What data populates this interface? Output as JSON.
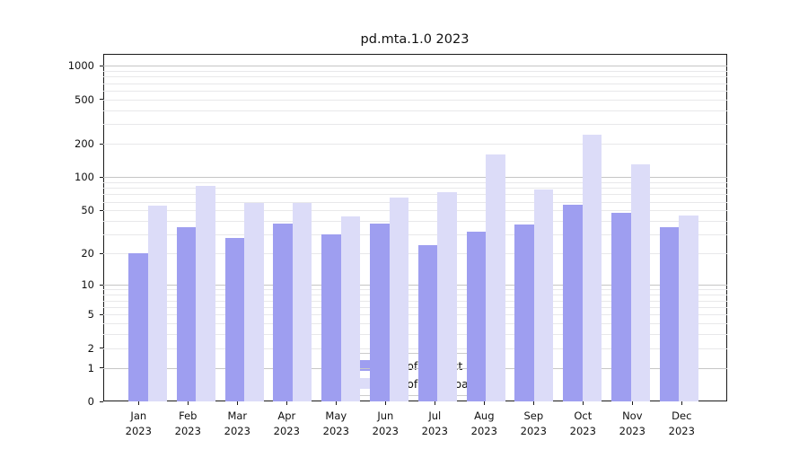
{
  "title": "pd.mta.1.0 2023",
  "legend": {
    "items": [
      {
        "label": "Nb of distinct IPs",
        "color": "#9e9ef0"
      },
      {
        "label": "Nb of downloads",
        "color": "#dcdcf8"
      }
    ]
  },
  "chart_data": {
    "type": "bar",
    "title": "pd.mta.1.0 2023",
    "categories": [
      "Jan",
      "Feb",
      "Mar",
      "Apr",
      "May",
      "Jun",
      "Jul",
      "Aug",
      "Sep",
      "Oct",
      "Nov",
      "Dec"
    ],
    "year_label": "2023",
    "series": [
      {
        "name": "Nb of distinct IPs",
        "color": "#9e9ef0",
        "values": [
          20,
          35,
          28,
          38,
          30,
          38,
          24,
          32,
          37,
          56,
          48,
          35
        ]
      },
      {
        "name": "Nb of downloads",
        "color": "#dcdcf8",
        "values": [
          55,
          83,
          58,
          59,
          44,
          65,
          73,
          160,
          77,
          240,
          130,
          45
        ]
      }
    ],
    "xlabel": "",
    "ylabel": "",
    "yticks": [
      0,
      1,
      2,
      5,
      10,
      20,
      50,
      100,
      200,
      500,
      1000
    ],
    "yscale": "log1p",
    "ylim": [
      0,
      1290
    ],
    "grid": true,
    "grid_major_color": "#c6c6c6",
    "grid_minor_color": "#e8e8ea",
    "legend_position": "lower center"
  }
}
